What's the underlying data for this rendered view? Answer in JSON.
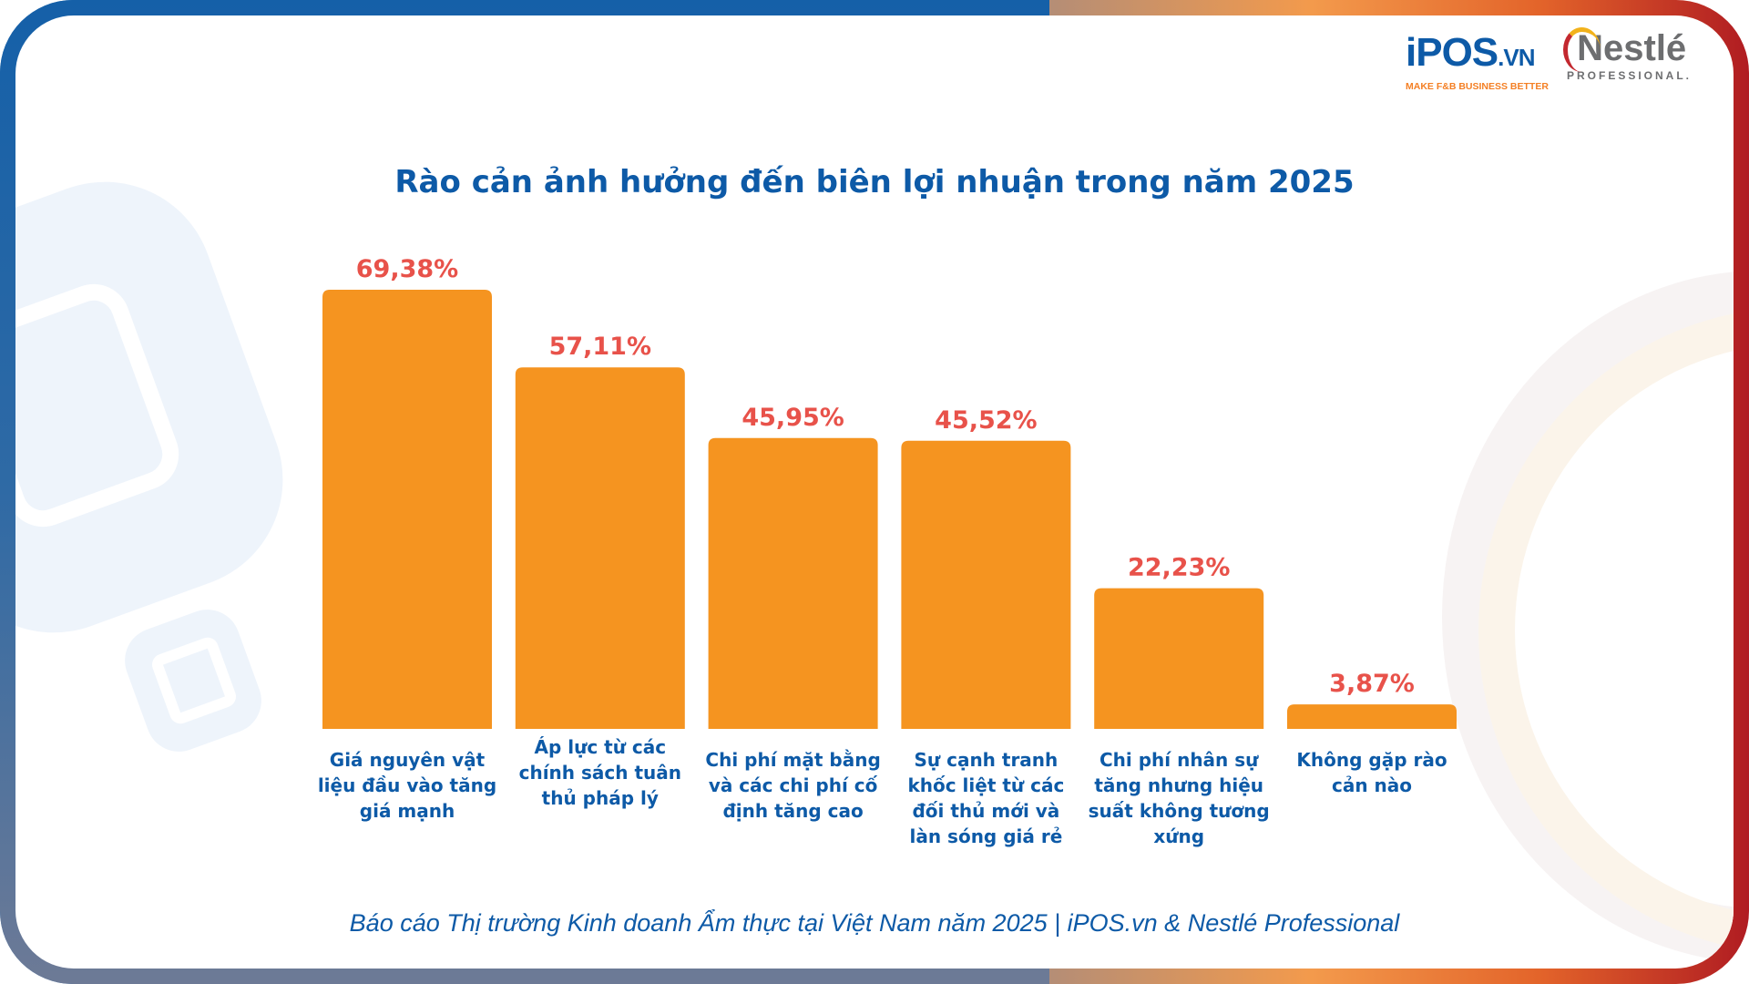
{
  "logos": {
    "ipos": "iPOS.vn",
    "ipos_tagline": "MAKE F&B BUSINESS BETTER",
    "nestle": "Nestlé",
    "nestle_sub": "PROFESSIONAL"
  },
  "chart_data": {
    "type": "bar",
    "title": "Rào cản ảnh hưởng đến biên lợi nhuận trong năm 2025",
    "categories": [
      "Giá nguyên vật liệu đầu vào tăng giá mạnh",
      "Áp lực từ các chính sách tuân thủ pháp lý",
      "Chi phí mặt bằng và các chi phí cố định tăng cao",
      "Sự cạnh tranh khốc liệt từ các đối thủ mới và làn sóng giá rẻ",
      "Chi phí nhân sự tăng nhưng hiệu suất không tương xứng",
      "Không gặp rào cản nào"
    ],
    "values": [
      69.38,
      57.11,
      45.95,
      45.52,
      22.23,
      3.87
    ],
    "data_labels": [
      "69,38%",
      "57,11%",
      "45,95%",
      "45,52%",
      "22,23%",
      "3,87%"
    ],
    "unit": "%",
    "ylim": [
      0,
      69.38
    ],
    "grid": false,
    "bar_color": "#f59420",
    "label_color": "#e8524a",
    "category_color": "#0d5aa7"
  },
  "footer": "Báo cáo Thị trường Kinh doanh Ẩm thực tại Việt Nam năm 2025 |  iPOS.vn & Nestlé Professional"
}
